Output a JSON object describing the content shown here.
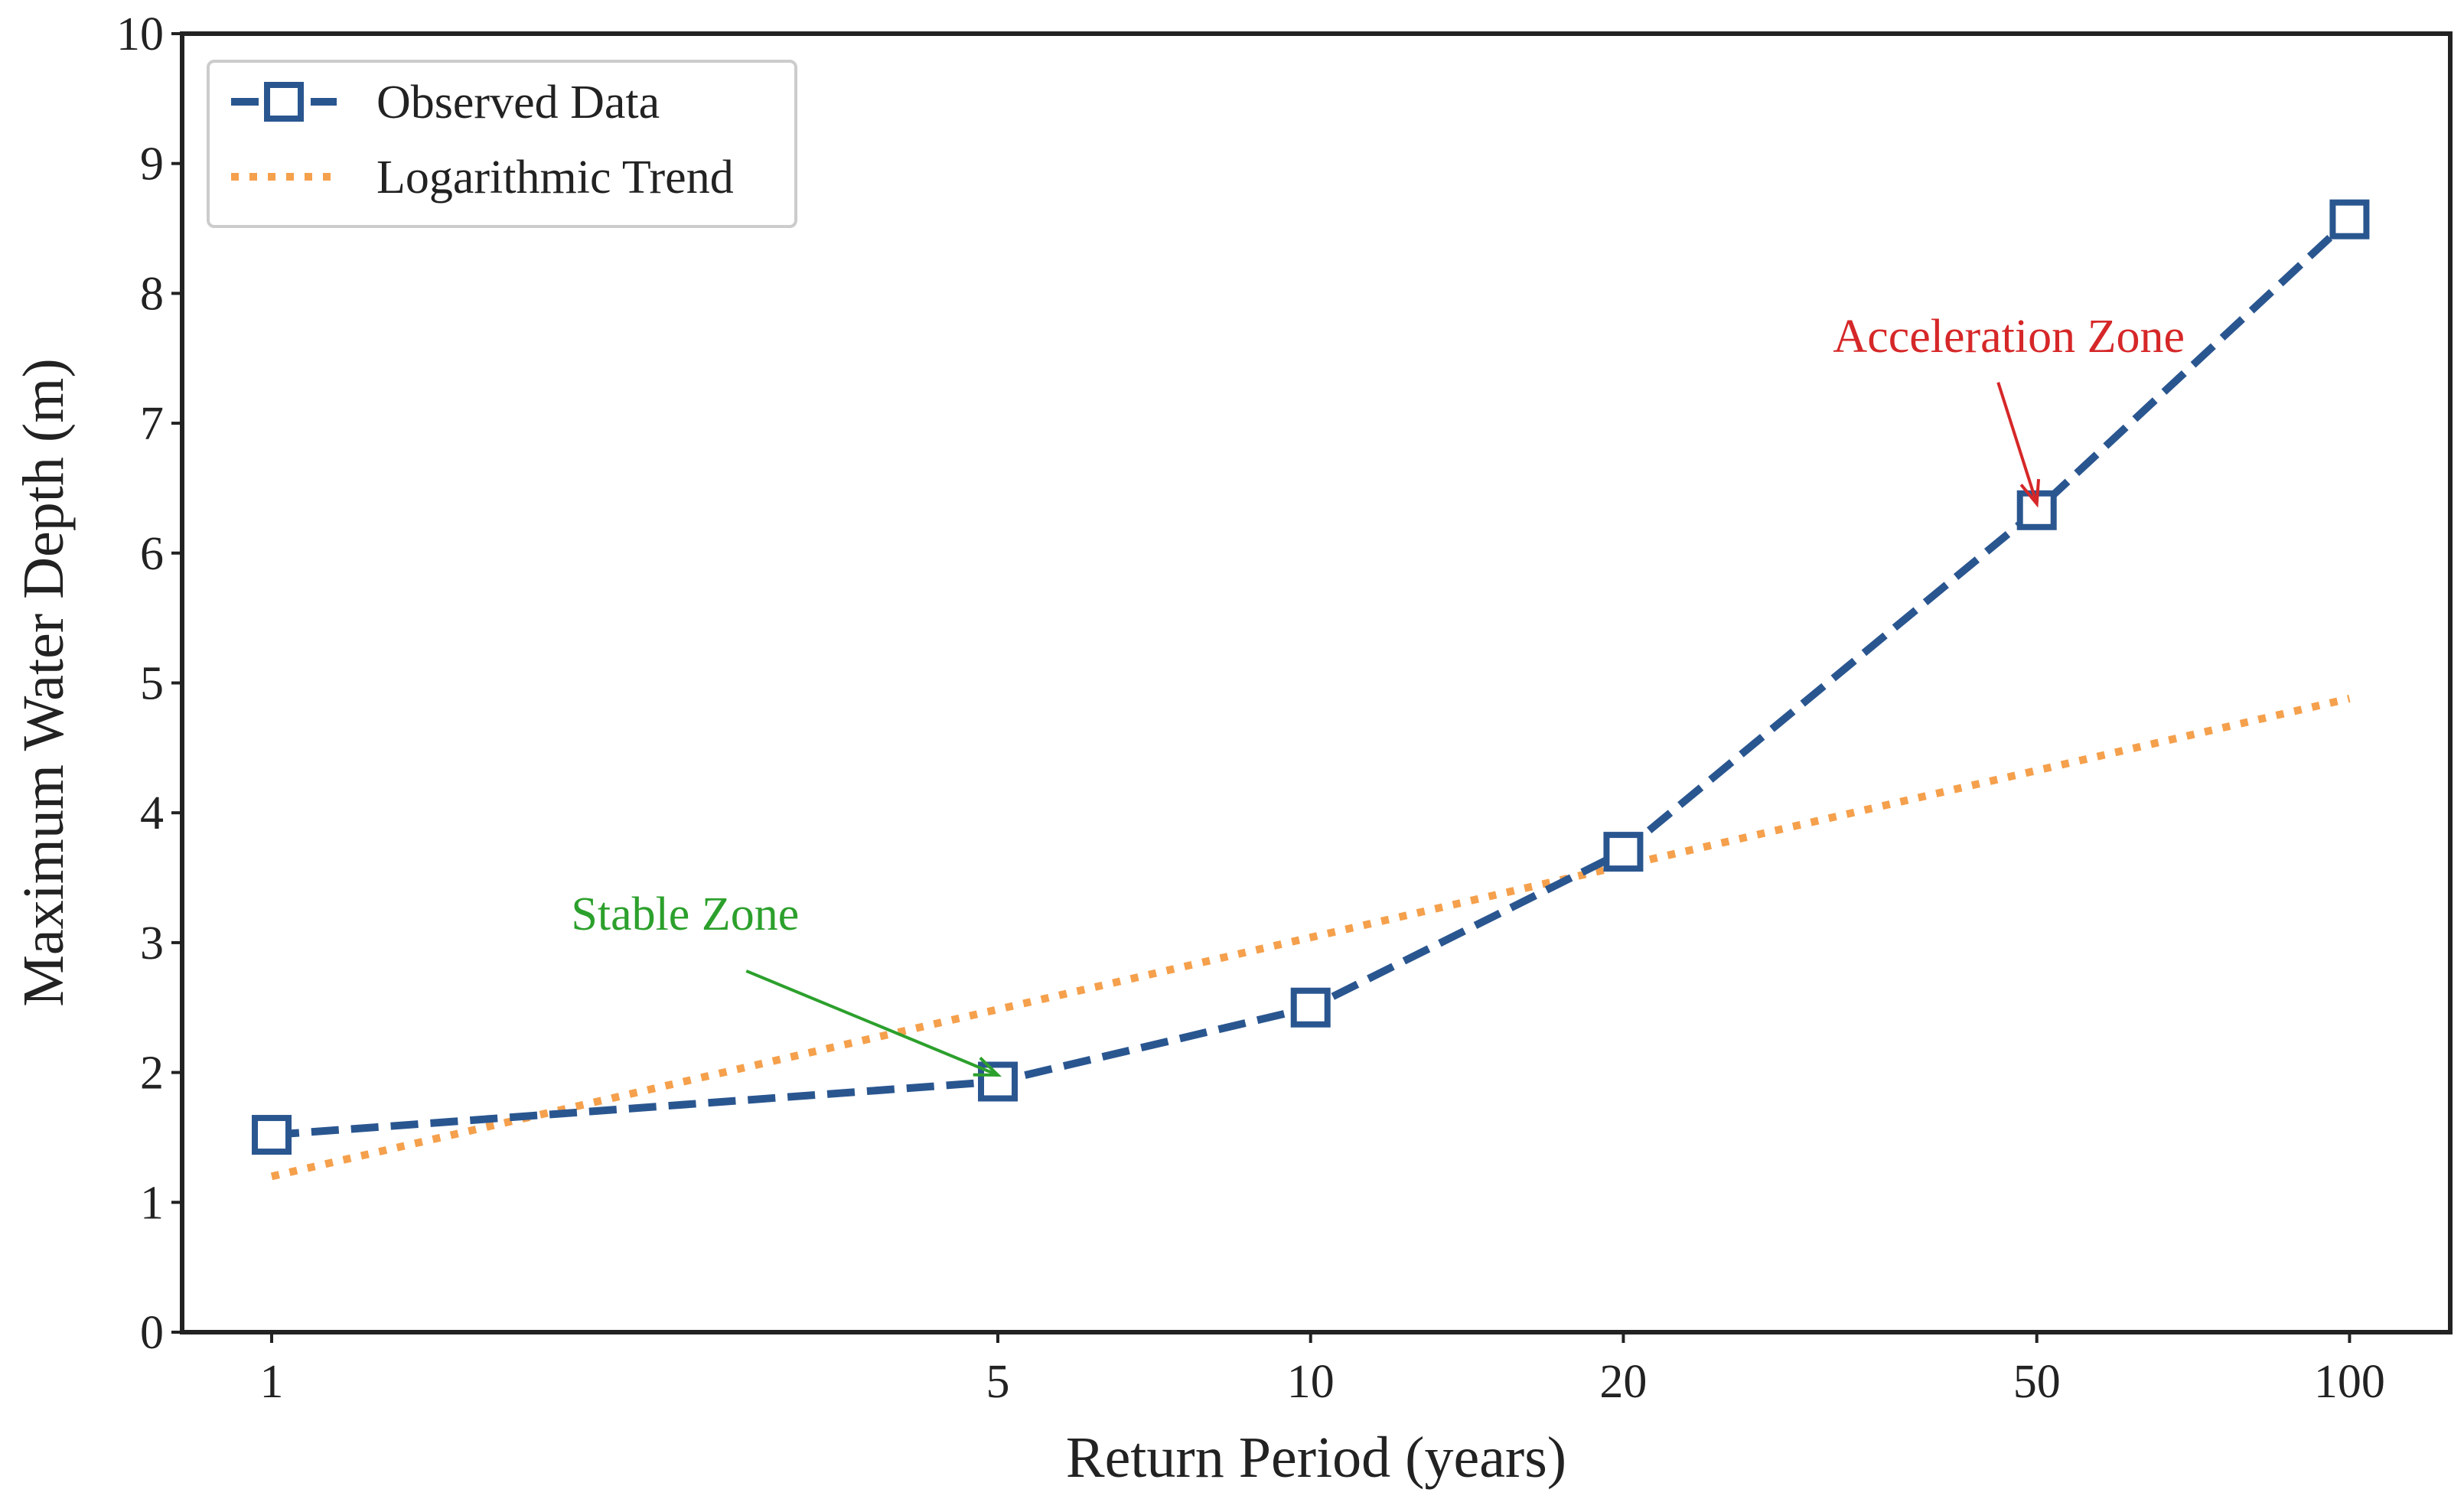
{
  "chart_data": {
    "type": "line",
    "title": "",
    "xlabel": "Return Period (years)",
    "ylabel": "Maximum Water Depth (m)",
    "x_scale": "log",
    "xlim": [
      0.82,
      125
    ],
    "ylim": [
      0,
      10
    ],
    "x_ticks": [
      1,
      5,
      10,
      20,
      50,
      100
    ],
    "x_tick_labels": [
      "1",
      "5",
      "10",
      "20",
      "50",
      "100"
    ],
    "y_ticks": [
      0,
      1,
      2,
      3,
      4,
      5,
      6,
      7,
      8,
      9,
      10
    ],
    "y_tick_labels": [
      "0",
      "1",
      "2",
      "3",
      "4",
      "5",
      "6",
      "7",
      "8",
      "9",
      "10"
    ],
    "grid": false,
    "legend_position": "top-left",
    "series": [
      {
        "name": "Observed Data",
        "style": "dashed",
        "marker": "square",
        "color": "#2a5690",
        "x": [
          1,
          5,
          10,
          20,
          50,
          100
        ],
        "y": [
          1.52,
          1.93,
          2.5,
          3.7,
          6.33,
          8.57
        ]
      },
      {
        "name": "Logarithmic Trend",
        "style": "dotted",
        "marker": "none",
        "color": "#f5a04c",
        "x": [
          1,
          100
        ],
        "y": [
          1.2,
          4.88
        ]
      }
    ],
    "annotations": [
      {
        "text": "Stable Zone",
        "color": "#2ca02c",
        "text_x": 2.5,
        "text_y": 3.1,
        "target_x": 5,
        "target_y": 1.98,
        "align": "center"
      },
      {
        "text": "Acceleration Zone",
        "color": "#d62728",
        "text_x": 47,
        "text_y": 7.55,
        "target_x": 50,
        "target_y": 6.38,
        "align": "center"
      }
    ]
  }
}
